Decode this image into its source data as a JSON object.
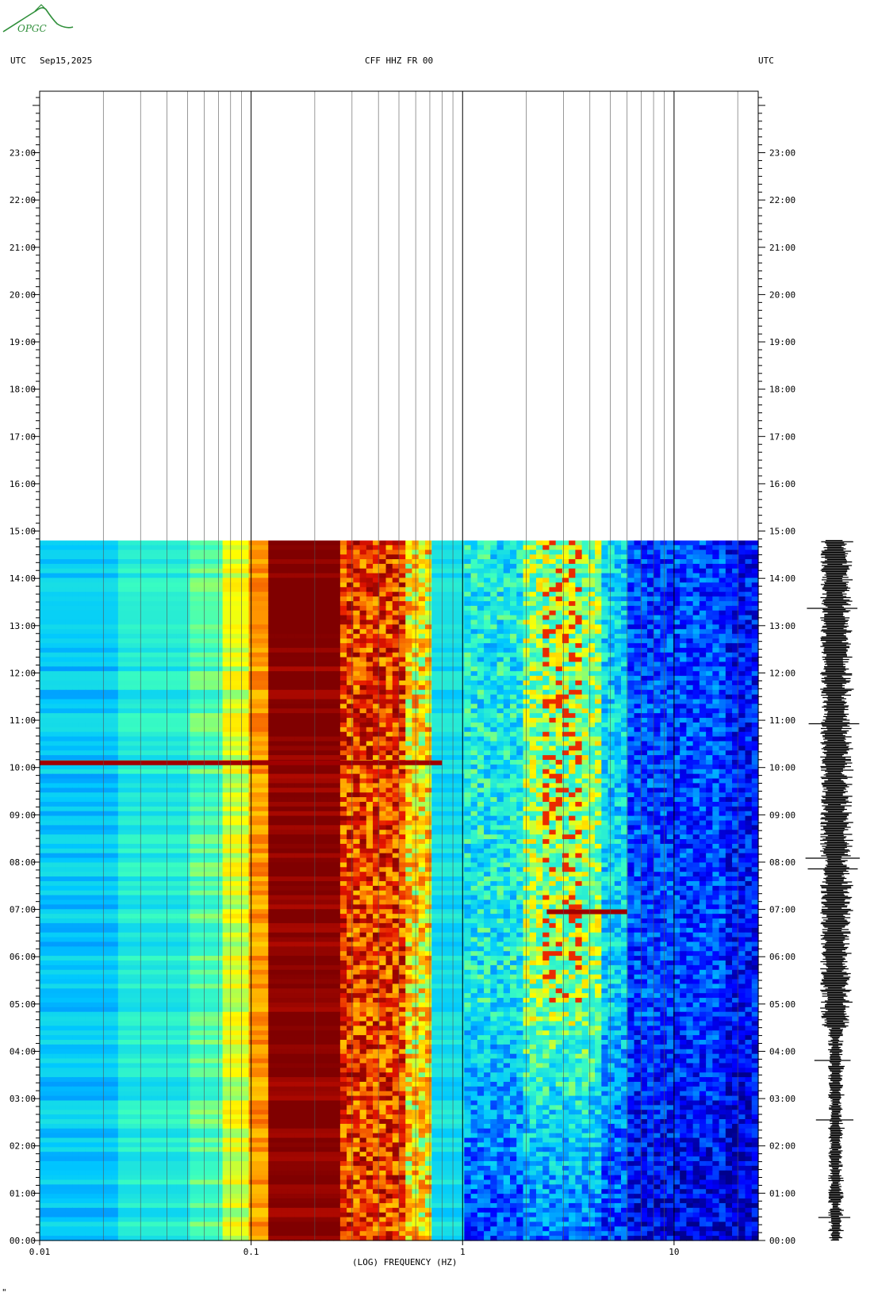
{
  "header": {
    "logo_text": "OPGC",
    "left_tz": "UTC",
    "date": "Sep15,2025",
    "station": "CFF HHZ FR 00",
    "right_tz": "UTC"
  },
  "footer": {
    "mark": "\""
  },
  "colors": {
    "dark_red": "#800000",
    "red": "#d40000",
    "orange": "#ff7f00",
    "yellow": "#ffff00",
    "cyan": "#00c8ff",
    "blue": "#0040ff",
    "navy": "#0000a0",
    "logo_green": "#2f8f3a"
  },
  "chart_data": {
    "type": "heatmap",
    "title": "CFF HHZ FR 00",
    "xlabel": "(LOG) FREQUENCY (HZ)",
    "x_scale": "log",
    "xlim": [
      0.01,
      25
    ],
    "x_ticks": [
      {
        "value": 0.01,
        "label": "0.01"
      },
      {
        "value": 0.1,
        "label": "0.1"
      },
      {
        "value": 1,
        "label": "1"
      },
      {
        "value": 10,
        "label": "10"
      }
    ],
    "y_ticks": [
      "00:00",
      "01:00",
      "02:00",
      "03:00",
      "04:00",
      "05:00",
      "06:00",
      "07:00",
      "08:00",
      "09:00",
      "10:00",
      "11:00",
      "12:00",
      "13:00",
      "14:00",
      "15:00",
      "16:00",
      "17:00",
      "18:00",
      "19:00",
      "20:00",
      "21:00",
      "22:00",
      "23:00"
    ],
    "ylim_hours": [
      0,
      24.3
    ],
    "data_end_hour": 14.8,
    "bands": [
      {
        "f_low": 0.01,
        "f_high": 0.024,
        "level": "cyan"
      },
      {
        "f_low": 0.024,
        "f_high": 0.05,
        "level": "cyan-green"
      },
      {
        "f_low": 0.05,
        "f_high": 0.075,
        "level": "green"
      },
      {
        "f_low": 0.075,
        "f_high": 0.1,
        "level": "yellow"
      },
      {
        "f_low": 0.1,
        "f_high": 0.12,
        "level": "orange"
      },
      {
        "f_low": 0.12,
        "f_high": 0.27,
        "level": "dark red"
      },
      {
        "f_low": 0.27,
        "f_high": 0.55,
        "level": "red-orange"
      },
      {
        "f_low": 0.55,
        "f_high": 0.7,
        "level": "yellow"
      },
      {
        "f_low": 0.7,
        "f_high": 1.0,
        "level": "cyan"
      },
      {
        "f_low": 1.0,
        "f_high": 6,
        "level": "cyan-yellow, red spots near 2.5–3.5 Hz"
      },
      {
        "f_low": 6,
        "f_high": 25,
        "level": "blue"
      }
    ],
    "events": [
      {
        "hour": 10.1,
        "f_low": 0.01,
        "f_high": 0.8,
        "note": "broadband energy"
      },
      {
        "hour": 6.95,
        "f_low": 2.5,
        "f_high": 6,
        "note": "horizontal streak"
      }
    ]
  }
}
